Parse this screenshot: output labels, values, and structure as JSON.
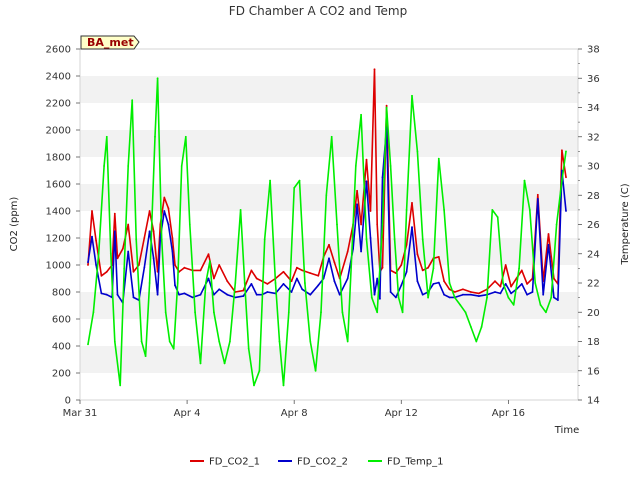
{
  "chart_data": {
    "type": "line",
    "title": "FD Chamber A CO2 and Temp",
    "xlabel": "Time",
    "ylabel": "CO2 (ppm)",
    "y2label": "Temperature (C)",
    "badge": "BA_met",
    "xlim": [
      0,
      18.6
    ],
    "ylim": [
      0,
      2600
    ],
    "y2lim": [
      14,
      38
    ],
    "x_ticks": [
      {
        "v": 0,
        "label": "Mar 31"
      },
      {
        "v": 4,
        "label": "Apr 4"
      },
      {
        "v": 8,
        "label": "Apr 8"
      },
      {
        "v": 12,
        "label": "Apr 12"
      },
      {
        "v": 16,
        "label": "Apr 16"
      }
    ],
    "y_ticks": [
      0,
      200,
      400,
      600,
      800,
      1000,
      1200,
      1400,
      1600,
      1800,
      2000,
      2200,
      2400,
      2600
    ],
    "y2_ticks": [
      14,
      16,
      18,
      20,
      22,
      24,
      26,
      28,
      30,
      32,
      34,
      36,
      38
    ],
    "grid": "horizontal bands",
    "legend_position": "bottom",
    "series": [
      {
        "name": "FD_CO2_1",
        "axis": "left",
        "color": "#dd0000",
        "x": [
          0.3,
          0.45,
          0.6,
          0.8,
          1.0,
          1.2,
          1.3,
          1.4,
          1.6,
          1.8,
          2.0,
          2.2,
          2.4,
          2.6,
          2.75,
          2.9,
          3.0,
          3.15,
          3.3,
          3.45,
          3.55,
          3.7,
          3.9,
          4.2,
          4.5,
          4.8,
          5.0,
          5.2,
          5.5,
          5.8,
          6.1,
          6.4,
          6.6,
          6.8,
          7.0,
          7.3,
          7.6,
          7.9,
          8.1,
          8.3,
          8.6,
          8.9,
          9.1,
          9.3,
          9.5,
          9.7,
          10.0,
          10.2,
          10.35,
          10.5,
          10.7,
          10.85,
          11.0,
          11.1,
          11.2,
          11.3,
          11.45,
          11.6,
          11.8,
          12.0,
          12.2,
          12.4,
          12.6,
          12.8,
          13.0,
          13.2,
          13.4,
          13.6,
          13.8,
          14.0,
          14.3,
          14.6,
          14.9,
          15.2,
          15.5,
          15.7,
          15.9,
          16.1,
          16.3,
          16.5,
          16.7,
          16.9,
          17.1,
          17.3,
          17.5,
          17.7,
          17.85,
          18.0,
          18.15
        ],
        "y": [
          1000,
          1400,
          1180,
          920,
          950,
          1000,
          1380,
          1050,
          1120,
          1300,
          950,
          1000,
          1200,
          1400,
          1250,
          950,
          1300,
          1500,
          1420,
          1200,
          1000,
          950,
          980,
          960,
          960,
          1080,
          900,
          1000,
          880,
          800,
          810,
          960,
          900,
          880,
          860,
          900,
          950,
          880,
          980,
          960,
          940,
          920,
          1060,
          1150,
          1020,
          900,
          1100,
          1300,
          1550,
          1300,
          1780,
          1400,
          2450,
          1300,
          950,
          980,
          2180,
          960,
          940,
          1000,
          1150,
          1460,
          1080,
          960,
          980,
          1050,
          1060,
          880,
          820,
          800,
          820,
          800,
          790,
          820,
          880,
          840,
          1000,
          840,
          900,
          960,
          860,
          900,
          1520,
          880,
          1230,
          900,
          860,
          1850,
          1650
        ]
      },
      {
        "name": "FD_CO2_2",
        "axis": "left",
        "color": "#0000cc",
        "x": [
          0.3,
          0.45,
          0.6,
          0.8,
          1.0,
          1.2,
          1.3,
          1.4,
          1.6,
          1.8,
          2.0,
          2.2,
          2.4,
          2.6,
          2.75,
          2.9,
          3.0,
          3.15,
          3.3,
          3.45,
          3.55,
          3.7,
          3.9,
          4.2,
          4.5,
          4.8,
          5.0,
          5.2,
          5.5,
          5.8,
          6.1,
          6.4,
          6.6,
          6.8,
          7.0,
          7.3,
          7.6,
          7.9,
          8.1,
          8.3,
          8.6,
          8.9,
          9.1,
          9.3,
          9.5,
          9.7,
          10.0,
          10.2,
          10.35,
          10.5,
          10.7,
          10.85,
          11.0,
          11.1,
          11.2,
          11.3,
          11.45,
          11.6,
          11.8,
          12.0,
          12.2,
          12.4,
          12.6,
          12.8,
          13.0,
          13.2,
          13.4,
          13.6,
          13.8,
          14.0,
          14.3,
          14.6,
          14.9,
          15.2,
          15.5,
          15.7,
          15.9,
          16.1,
          16.3,
          16.5,
          16.7,
          16.9,
          17.1,
          17.3,
          17.5,
          17.7,
          17.85,
          18.0,
          18.15
        ],
        "y": [
          1020,
          1210,
          1000,
          790,
          780,
          760,
          1250,
          780,
          720,
          1100,
          760,
          740,
          980,
          1250,
          1050,
          780,
          1200,
          1400,
          1300,
          1100,
          850,
          780,
          790,
          760,
          780,
          900,
          780,
          820,
          780,
          760,
          770,
          860,
          780,
          780,
          800,
          790,
          860,
          800,
          900,
          820,
          780,
          850,
          900,
          1050,
          880,
          780,
          900,
          1120,
          1450,
          1100,
          1620,
          1200,
          780,
          900,
          750,
          1650,
          2020,
          800,
          760,
          850,
          950,
          1280,
          880,
          780,
          800,
          860,
          870,
          780,
          760,
          760,
          780,
          780,
          770,
          780,
          800,
          790,
          860,
          790,
          820,
          860,
          780,
          800,
          1490,
          780,
          1150,
          760,
          740,
          1700,
          1400
        ]
      },
      {
        "name": "FD_Temp_1",
        "axis": "right",
        "color": "#00ee00",
        "x": [
          0.3,
          0.5,
          0.7,
          0.9,
          1.0,
          1.15,
          1.3,
          1.5,
          1.65,
          1.8,
          1.95,
          2.1,
          2.3,
          2.45,
          2.6,
          2.8,
          2.9,
          3.05,
          3.2,
          3.35,
          3.5,
          3.65,
          3.8,
          3.95,
          4.1,
          4.3,
          4.5,
          4.7,
          4.85,
          5.0,
          5.2,
          5.4,
          5.6,
          5.8,
          6.0,
          6.15,
          6.3,
          6.5,
          6.7,
          6.9,
          7.1,
          7.3,
          7.45,
          7.6,
          7.8,
          8.0,
          8.2,
          8.4,
          8.6,
          8.8,
          9.0,
          9.2,
          9.4,
          9.6,
          9.8,
          10.0,
          10.15,
          10.3,
          10.5,
          10.7,
          10.9,
          11.1,
          11.3,
          11.45,
          11.6,
          11.75,
          11.9,
          12.05,
          12.2,
          12.4,
          12.6,
          12.8,
          13.0,
          13.2,
          13.4,
          13.6,
          13.8,
          14.0,
          14.2,
          14.4,
          14.6,
          14.8,
          15.0,
          15.2,
          15.4,
          15.6,
          15.8,
          16.0,
          16.2,
          16.4,
          16.6,
          16.8,
          17.0,
          17.2,
          17.4,
          17.6,
          17.8,
          18.0,
          18.15
        ],
        "y": [
          17.8,
          20.0,
          24.0,
          30.0,
          32.0,
          24.0,
          18.0,
          15.0,
          23.0,
          30.0,
          34.5,
          25.0,
          18.0,
          17.0,
          22.0,
          32.0,
          36.0,
          25.0,
          20.0,
          18.0,
          17.5,
          22.0,
          30.0,
          32.0,
          26.0,
          20.0,
          16.5,
          22.0,
          23.5,
          20.0,
          18.0,
          16.5,
          18.0,
          22.0,
          27.0,
          22.0,
          17.5,
          15.0,
          16.0,
          25.0,
          29.0,
          22.0,
          18.0,
          15.0,
          20.0,
          28.5,
          29.0,
          22.0,
          18.0,
          16.0,
          20.0,
          28.0,
          32.0,
          26.0,
          20.0,
          18.0,
          24.0,
          30.0,
          33.5,
          25.0,
          21.0,
          20.0,
          26.0,
          34.0,
          30.0,
          25.0,
          21.0,
          20.0,
          27.0,
          34.8,
          31.0,
          25.0,
          21.0,
          23.0,
          30.5,
          27.0,
          22.0,
          21.0,
          20.5,
          20.0,
          19.0,
          18.0,
          19.0,
          21.0,
          27.0,
          26.5,
          22.0,
          21.0,
          20.5,
          23.0,
          29.0,
          27.0,
          22.0,
          20.5,
          20.0,
          21.0,
          26.0,
          29.0,
          31.0
        ]
      }
    ]
  }
}
